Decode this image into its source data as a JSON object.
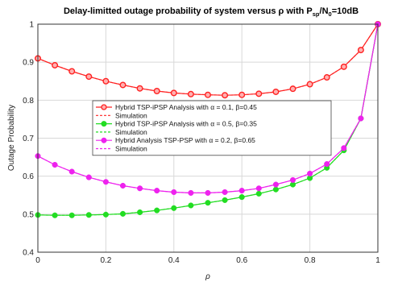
{
  "chart_data": {
    "type": "line",
    "title_main": "Delay-limitted outage probability of system versus ρ with P",
    "title_sub1": "sp",
    "title_mid": "/N",
    "title_sub2": "0",
    "title_end": "=10dB",
    "xlabel": "ρ",
    "ylabel": "Outage Probability",
    "xlim": [
      0,
      1
    ],
    "ylim": [
      0.4,
      1
    ],
    "xticks": [
      "0",
      "0.2",
      "0.4",
      "0.6",
      "0.8",
      "1"
    ],
    "xtick_values": [
      0,
      0.2,
      0.4,
      0.6,
      0.8,
      1
    ],
    "yticks": [
      "0.4",
      "0.5",
      "0.6",
      "0.7",
      "0.8",
      "0.9",
      "1"
    ],
    "ytick_values": [
      0.4,
      0.5,
      0.6,
      0.7,
      0.8,
      0.9,
      1
    ],
    "grid": true,
    "legend_placement": "center",
    "x": [
      0,
      0.05,
      0.1,
      0.15,
      0.2,
      0.25,
      0.3,
      0.35,
      0.4,
      0.45,
      0.5,
      0.55,
      0.6,
      0.65,
      0.7,
      0.75,
      0.8,
      0.85,
      0.9,
      0.95,
      1
    ],
    "series": [
      {
        "name": "Hybrid TSP-iPSP Analysis with α = 0.1, β=0.45",
        "sim_name": "Simulation",
        "color": "#ff2222",
        "marker": "circle-open",
        "values": [
          0.91,
          0.892,
          0.876,
          0.862,
          0.85,
          0.84,
          0.831,
          0.824,
          0.819,
          0.816,
          0.814,
          0.813,
          0.814,
          0.817,
          0.822,
          0.83,
          0.842,
          0.86,
          0.888,
          0.932,
          1.0
        ]
      },
      {
        "name": "Hybrid TSP-iPSP Analysis with α = 0.5, β=0.35",
        "sim_name": "Simulation",
        "color": "#22dd22",
        "marker": "circle-filled",
        "values": [
          0.498,
          0.497,
          0.497,
          0.498,
          0.499,
          0.501,
          0.505,
          0.51,
          0.516,
          0.523,
          0.53,
          0.537,
          0.545,
          0.554,
          0.565,
          0.578,
          0.595,
          0.622,
          0.668,
          0.752,
          1.0
        ]
      },
      {
        "name": "Hybrid Analysis TSP-PSP with α = 0.2, β=0.65",
        "sim_name": "Simulation",
        "color": "#ee22ee",
        "marker": "circle-filled",
        "values": [
          0.653,
          0.63,
          0.612,
          0.597,
          0.585,
          0.575,
          0.568,
          0.562,
          0.558,
          0.556,
          0.556,
          0.558,
          0.562,
          0.568,
          0.578,
          0.59,
          0.607,
          0.632,
          0.674,
          0.752,
          1.0
        ]
      }
    ]
  }
}
